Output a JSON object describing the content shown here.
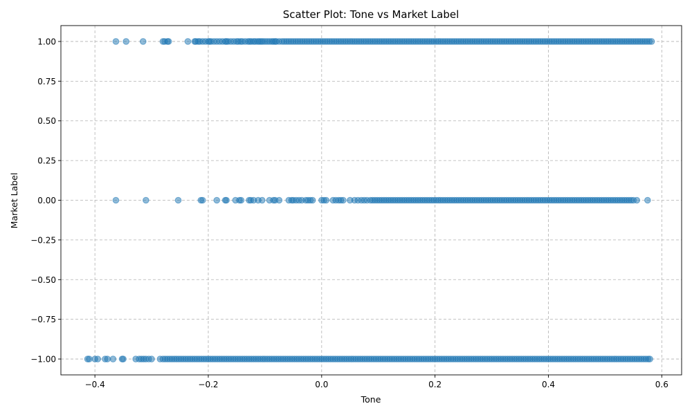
{
  "chart_data": {
    "type": "scatter",
    "title": "Scatter Plot: Tone vs Market Label",
    "xlabel": "Tone",
    "ylabel": "Market Label",
    "xlim": [
      -0.46,
      0.635
    ],
    "ylim": [
      -1.1,
      1.1
    ],
    "x_ticks": [
      -0.4,
      -0.2,
      0.0,
      0.2,
      0.4,
      0.6
    ],
    "x_tick_labels": [
      "−0.4",
      "−0.2",
      "0.0",
      "0.2",
      "0.4",
      "0.6"
    ],
    "y_ticks": [
      -1.0,
      -0.75,
      -0.5,
      -0.25,
      0.0,
      0.25,
      0.5,
      0.75,
      1.0
    ],
    "y_tick_labels": [
      "−1.00",
      "−0.75",
      "−0.50",
      "−0.25",
      "0.00",
      "0.25",
      "0.50",
      "0.75",
      "1.00"
    ],
    "grid": true,
    "color": "#1f77b4",
    "series": [
      {
        "y": 1,
        "x": [
          -0.363,
          -0.345,
          -0.315,
          -0.28,
          -0.277,
          -0.272,
          -0.27,
          -0.236,
          -0.224,
          -0.222,
          -0.218,
          -0.215,
          -0.21,
          -0.205,
          -0.2,
          -0.198,
          -0.195,
          -0.19,
          -0.185,
          -0.18,
          -0.175,
          -0.17,
          -0.168,
          -0.165,
          -0.16,
          -0.155,
          -0.15,
          -0.147,
          -0.143,
          -0.14,
          -0.135,
          -0.13,
          -0.127,
          -0.124,
          -0.12,
          -0.117,
          -0.113,
          -0.11,
          -0.107,
          -0.104,
          -0.1,
          -0.096,
          -0.092,
          -0.088,
          -0.085,
          -0.082,
          -0.08,
          -0.075,
          -0.07,
          -0.066,
          -0.062,
          -0.058,
          -0.054,
          -0.05,
          -0.046,
          -0.042,
          -0.038,
          -0.034,
          -0.03,
          -0.026,
          -0.022,
          -0.018,
          -0.014,
          -0.01,
          -0.006,
          -0.002,
          0.002,
          0.006,
          0.01,
          0.014,
          0.018,
          0.022,
          0.026,
          0.03,
          0.034,
          0.038,
          0.042,
          0.046,
          0.05,
          0.054,
          0.058,
          0.062,
          0.066,
          0.07,
          0.074,
          0.078,
          0.082,
          0.086,
          0.09,
          0.094,
          0.098,
          0.102,
          0.106,
          0.11,
          0.114,
          0.118,
          0.122,
          0.126,
          0.13,
          0.134,
          0.138,
          0.142,
          0.146,
          0.15,
          0.154,
          0.158,
          0.162,
          0.166,
          0.17,
          0.174,
          0.178,
          0.182,
          0.186,
          0.19,
          0.194,
          0.198,
          0.202,
          0.206,
          0.21,
          0.214,
          0.218,
          0.222,
          0.226,
          0.23,
          0.234,
          0.238,
          0.242,
          0.246,
          0.25,
          0.254,
          0.258,
          0.262,
          0.266,
          0.27,
          0.274,
          0.278,
          0.282,
          0.286,
          0.29,
          0.294,
          0.298,
          0.302,
          0.306,
          0.31,
          0.314,
          0.318,
          0.322,
          0.326,
          0.33,
          0.334,
          0.338,
          0.342,
          0.346,
          0.35,
          0.354,
          0.358,
          0.362,
          0.366,
          0.37,
          0.374,
          0.378,
          0.382,
          0.386,
          0.39,
          0.394,
          0.398,
          0.402,
          0.406,
          0.41,
          0.414,
          0.418,
          0.422,
          0.426,
          0.43,
          0.434,
          0.438,
          0.442,
          0.446,
          0.45,
          0.454,
          0.458,
          0.462,
          0.466,
          0.47,
          0.474,
          0.478,
          0.482,
          0.486,
          0.49,
          0.494,
          0.498,
          0.502,
          0.506,
          0.51,
          0.514,
          0.518,
          0.522,
          0.526,
          0.53,
          0.534,
          0.538,
          0.542,
          0.546,
          0.55,
          0.554,
          0.558,
          0.562,
          0.566,
          0.57,
          0.574,
          0.578,
          0.582
        ]
      },
      {
        "y": 0,
        "x": [
          -0.363,
          -0.31,
          -0.253,
          -0.213,
          -0.21,
          -0.185,
          -0.17,
          -0.168,
          -0.152,
          -0.145,
          -0.142,
          -0.128,
          -0.125,
          -0.12,
          -0.112,
          -0.105,
          -0.092,
          -0.085,
          -0.082,
          -0.075,
          -0.058,
          -0.053,
          -0.05,
          -0.045,
          -0.04,
          -0.035,
          -0.028,
          -0.024,
          -0.02,
          -0.016,
          0.0,
          0.004,
          0.008,
          0.02,
          0.025,
          0.03,
          0.034,
          0.038,
          0.05,
          0.058,
          0.064,
          0.07,
          0.075,
          0.08,
          0.086,
          0.09,
          0.094,
          0.098,
          0.102,
          0.106,
          0.11,
          0.114,
          0.118,
          0.122,
          0.126,
          0.13,
          0.134,
          0.138,
          0.142,
          0.146,
          0.15,
          0.154,
          0.158,
          0.162,
          0.166,
          0.17,
          0.174,
          0.178,
          0.182,
          0.186,
          0.19,
          0.194,
          0.198,
          0.202,
          0.206,
          0.21,
          0.214,
          0.218,
          0.222,
          0.226,
          0.23,
          0.234,
          0.238,
          0.242,
          0.246,
          0.25,
          0.254,
          0.258,
          0.262,
          0.266,
          0.27,
          0.274,
          0.278,
          0.282,
          0.286,
          0.29,
          0.294,
          0.298,
          0.302,
          0.306,
          0.31,
          0.314,
          0.318,
          0.322,
          0.326,
          0.33,
          0.334,
          0.338,
          0.342,
          0.346,
          0.35,
          0.354,
          0.358,
          0.362,
          0.366,
          0.37,
          0.374,
          0.378,
          0.382,
          0.386,
          0.39,
          0.394,
          0.398,
          0.402,
          0.406,
          0.41,
          0.414,
          0.418,
          0.422,
          0.426,
          0.43,
          0.434,
          0.438,
          0.442,
          0.446,
          0.45,
          0.454,
          0.458,
          0.462,
          0.466,
          0.47,
          0.474,
          0.478,
          0.482,
          0.486,
          0.49,
          0.494,
          0.498,
          0.502,
          0.506,
          0.51,
          0.514,
          0.518,
          0.522,
          0.526,
          0.53,
          0.534,
          0.538,
          0.542,
          0.546,
          0.55,
          0.556,
          0.575
        ]
      },
      {
        "y": -1,
        "x": [
          -0.413,
          -0.41,
          -0.4,
          -0.395,
          -0.382,
          -0.378,
          -0.368,
          -0.352,
          -0.35,
          -0.328,
          -0.322,
          -0.318,
          -0.314,
          -0.31,
          -0.305,
          -0.3,
          -0.285,
          -0.28,
          -0.276,
          -0.272,
          -0.268,
          -0.264,
          -0.26,
          -0.256,
          -0.252,
          -0.248,
          -0.244,
          -0.24,
          -0.236,
          -0.232,
          -0.228,
          -0.224,
          -0.22,
          -0.216,
          -0.212,
          -0.208,
          -0.204,
          -0.2,
          -0.196,
          -0.192,
          -0.188,
          -0.184,
          -0.18,
          -0.176,
          -0.172,
          -0.168,
          -0.164,
          -0.16,
          -0.156,
          -0.152,
          -0.148,
          -0.144,
          -0.14,
          -0.136,
          -0.132,
          -0.128,
          -0.124,
          -0.12,
          -0.116,
          -0.112,
          -0.108,
          -0.104,
          -0.1,
          -0.096,
          -0.092,
          -0.088,
          -0.084,
          -0.08,
          -0.076,
          -0.072,
          -0.068,
          -0.064,
          -0.06,
          -0.056,
          -0.052,
          -0.048,
          -0.044,
          -0.04,
          -0.036,
          -0.032,
          -0.028,
          -0.024,
          -0.02,
          -0.016,
          -0.012,
          -0.008,
          -0.004,
          0.0,
          0.004,
          0.008,
          0.012,
          0.016,
          0.02,
          0.024,
          0.028,
          0.032,
          0.036,
          0.04,
          0.044,
          0.048,
          0.052,
          0.056,
          0.06,
          0.064,
          0.068,
          0.072,
          0.076,
          0.08,
          0.084,
          0.088,
          0.092,
          0.096,
          0.1,
          0.104,
          0.108,
          0.112,
          0.116,
          0.12,
          0.124,
          0.128,
          0.132,
          0.136,
          0.14,
          0.144,
          0.148,
          0.152,
          0.156,
          0.16,
          0.164,
          0.168,
          0.172,
          0.176,
          0.18,
          0.184,
          0.188,
          0.192,
          0.196,
          0.2,
          0.204,
          0.208,
          0.212,
          0.216,
          0.22,
          0.224,
          0.228,
          0.232,
          0.236,
          0.24,
          0.244,
          0.248,
          0.252,
          0.256,
          0.26,
          0.264,
          0.268,
          0.272,
          0.276,
          0.28,
          0.284,
          0.288,
          0.292,
          0.296,
          0.3,
          0.304,
          0.308,
          0.312,
          0.316,
          0.32,
          0.324,
          0.328,
          0.332,
          0.336,
          0.34,
          0.344,
          0.348,
          0.352,
          0.356,
          0.36,
          0.364,
          0.368,
          0.372,
          0.376,
          0.38,
          0.384,
          0.388,
          0.392,
          0.396,
          0.4,
          0.404,
          0.408,
          0.412,
          0.416,
          0.42,
          0.424,
          0.428,
          0.432,
          0.436,
          0.44,
          0.444,
          0.448,
          0.452,
          0.456,
          0.46,
          0.464,
          0.468,
          0.472,
          0.476,
          0.48,
          0.484,
          0.488,
          0.492,
          0.496,
          0.5,
          0.504,
          0.508,
          0.512,
          0.516,
          0.52,
          0.524,
          0.528,
          0.532,
          0.536,
          0.54,
          0.544,
          0.548,
          0.552,
          0.556,
          0.56,
          0.564,
          0.568,
          0.572,
          0.576,
          0.579
        ]
      }
    ]
  }
}
